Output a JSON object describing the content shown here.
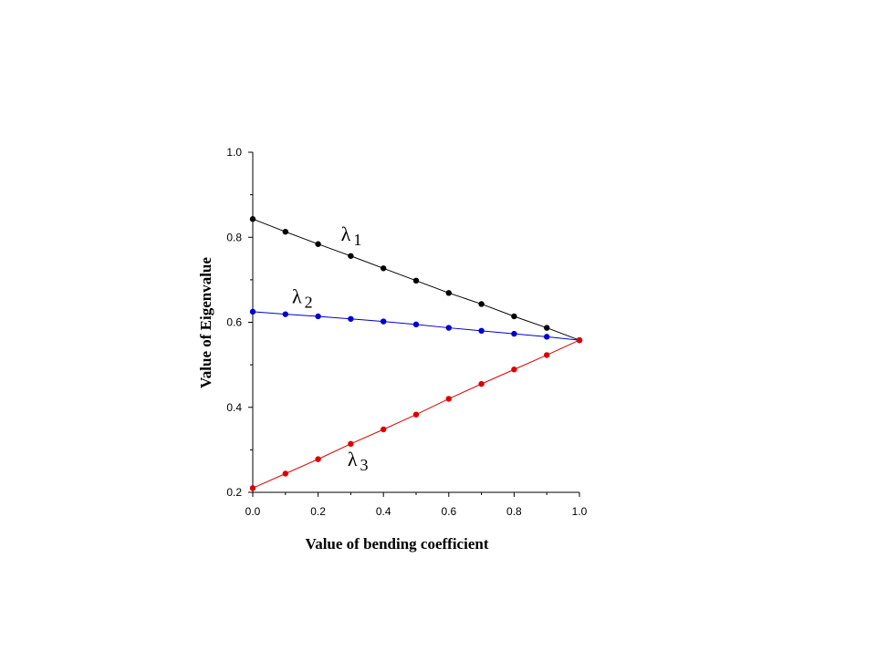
{
  "chart_data": {
    "type": "line",
    "xlabel": "Value of bending coefficient",
    "ylabel": "Value of Eigenvalue",
    "xlim": [
      0.0,
      1.0
    ],
    "ylim": [
      0.2,
      1.0
    ],
    "x_ticks": [
      "0.0",
      "0.2",
      "0.4",
      "0.6",
      "0.8",
      "1.0"
    ],
    "y_ticks": [
      "0.2",
      "0.4",
      "0.6",
      "0.8",
      "1.0"
    ],
    "grid": false,
    "x": [
      0.0,
      0.1,
      0.2,
      0.3,
      0.4,
      0.5,
      0.6,
      0.7,
      0.8,
      0.9,
      1.0
    ],
    "series": [
      {
        "name": "λ1",
        "label_main": "λ",
        "label_sub": "1",
        "color": "#000000",
        "values": [
          0.843,
          0.813,
          0.784,
          0.756,
          0.727,
          0.698,
          0.669,
          0.643,
          0.614,
          0.587,
          0.558
        ]
      },
      {
        "name": "λ2",
        "label_main": "λ",
        "label_sub": "2",
        "color": "#0000cc",
        "values": [
          0.625,
          0.619,
          0.614,
          0.608,
          0.602,
          0.595,
          0.587,
          0.58,
          0.573,
          0.566,
          0.558
        ]
      },
      {
        "name": "λ3",
        "label_main": "λ",
        "label_sub": "3",
        "color": "#dd0000",
        "values": [
          0.21,
          0.244,
          0.278,
          0.314,
          0.348,
          0.383,
          0.42,
          0.455,
          0.489,
          0.523,
          0.558
        ]
      }
    ]
  }
}
